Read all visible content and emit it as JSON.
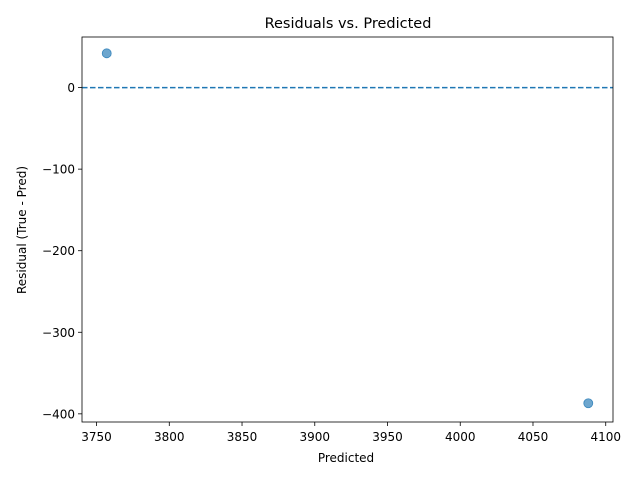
{
  "chart_data": {
    "type": "scatter",
    "title": "Residuals vs. Predicted",
    "xlabel": "Predicted",
    "ylabel": "Residual (True - Pred)",
    "xlim": [
      3740,
      4105
    ],
    "ylim": [
      -410,
      62
    ],
    "xticks": [
      3750,
      3800,
      3850,
      3900,
      3950,
      4000,
      4050,
      4100
    ],
    "yticks": [
      0,
      -100,
      -200,
      -300,
      -400
    ],
    "points": [
      {
        "x": 3757,
        "y": 42
      },
      {
        "x": 4088,
        "y": -387
      }
    ],
    "reference_line": {
      "y": 0,
      "style": "dashed"
    },
    "point_color": "#1f77b4",
    "line_color": "#1f77b4",
    "grid": false,
    "legend": "none"
  }
}
